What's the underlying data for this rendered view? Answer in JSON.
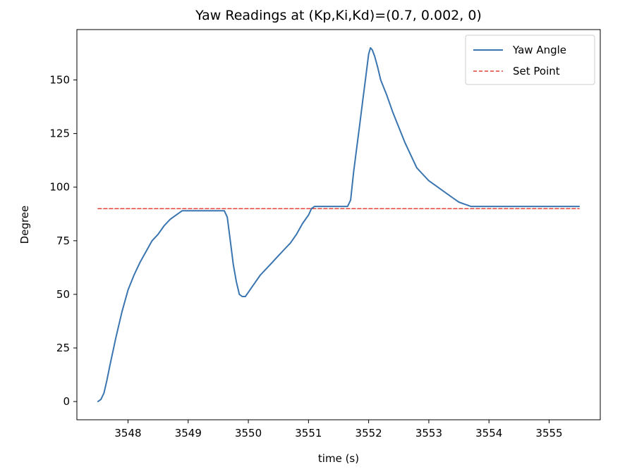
{
  "chart_data": {
    "type": "line",
    "title": "Yaw Readings at (Kp,Ki,Kd)=(0.7, 0.002, 0)",
    "xlabel": "time (s)",
    "ylabel": "Degree",
    "xlim": [
      3547.15,
      3555.85
    ],
    "ylim": [
      -8.5,
      173.5
    ],
    "xticks": [
      3548,
      3549,
      3550,
      3551,
      3552,
      3553,
      3554,
      3555
    ],
    "yticks": [
      0,
      25,
      50,
      75,
      100,
      125,
      150
    ],
    "grid": false,
    "legend": "upper right",
    "series": [
      {
        "name": "Yaw Angle",
        "color": "#3a75b0",
        "style": "solid",
        "x": [
          3547.5,
          3547.55,
          3547.6,
          3547.65,
          3547.7,
          3547.8,
          3547.9,
          3548.0,
          3548.1,
          3548.2,
          3548.3,
          3548.4,
          3548.5,
          3548.6,
          3548.7,
          3548.8,
          3548.9,
          3548.95,
          3549.1,
          3549.3,
          3549.5,
          3549.6,
          3549.65,
          3549.7,
          3549.75,
          3549.8,
          3549.85,
          3549.9,
          3549.95,
          3550.0,
          3550.05,
          3550.1,
          3550.2,
          3550.3,
          3550.4,
          3550.5,
          3550.6,
          3550.7,
          3550.8,
          3550.9,
          3551.0,
          3551.05,
          3551.1,
          3551.2,
          3551.3,
          3551.4,
          3551.5,
          3551.6,
          3551.65,
          3551.7,
          3551.75,
          3551.8,
          3551.85,
          3551.9,
          3551.95,
          3552.0,
          3552.03,
          3552.06,
          3552.1,
          3552.15,
          3552.2,
          3552.3,
          3552.4,
          3552.5,
          3552.6,
          3552.7,
          3552.8,
          3552.9,
          3553.0,
          3553.1,
          3553.2,
          3553.3,
          3553.4,
          3553.5,
          3553.6,
          3553.7,
          3553.8,
          3553.9,
          3554.0,
          3554.5,
          3555.0,
          3555.5
        ],
        "y": [
          0,
          1,
          4,
          10,
          17,
          30,
          42,
          52,
          59,
          65,
          70,
          75,
          78,
          82,
          85,
          87,
          89,
          89,
          89,
          89,
          89,
          89,
          86,
          75,
          64,
          56,
          50,
          49,
          49,
          51,
          53,
          55,
          59,
          62,
          65,
          68,
          71,
          74,
          78,
          83,
          87,
          90,
          91,
          91,
          91,
          91,
          91,
          91,
          91,
          94,
          107,
          118,
          129,
          140,
          151,
          162,
          165,
          164,
          161,
          156,
          150,
          143,
          135,
          128,
          121,
          115,
          109,
          106,
          103,
          101,
          99,
          97,
          95,
          93,
          92,
          91,
          91,
          91,
          91,
          91,
          91,
          91
        ]
      },
      {
        "name": "Set Point",
        "color": "#e0443a",
        "style": "dashed",
        "x": [
          3547.5,
          3555.5
        ],
        "y": [
          90,
          90
        ]
      }
    ]
  }
}
